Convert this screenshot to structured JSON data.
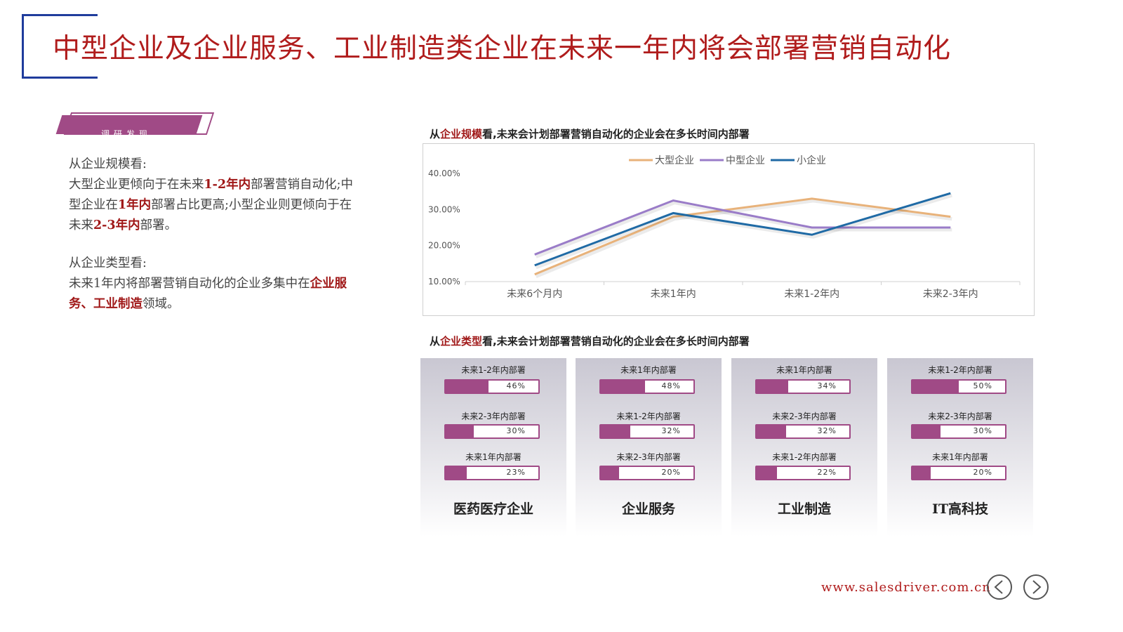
{
  "title": "中型企业及企业服务、工业制造类企业在未来一年内将会部署营销自动化",
  "tag_label": "调研发现",
  "findings": {
    "p1_head": "从企业规模看:",
    "p1_parts": [
      "大型企业更倾向于在未来",
      "1-2年内",
      "部署营销自动化;中型企业在",
      "1年内",
      "部署占比更高;小型企业则更倾向于在未来",
      "2-3年内",
      "部署。"
    ],
    "p2_head": "从企业类型看:",
    "p2_parts": [
      "未来1年内将部署营销自动化的企业多集中在",
      "企业服务",
      "、",
      "工业制造",
      "领域。"
    ]
  },
  "section1": {
    "prefix": "从",
    "highlight": "企业规模",
    "suffix": "看,未来会计划部署营销自动化的企业会在多长时间内部署"
  },
  "section2": {
    "prefix": "从",
    "highlight": "企业类型",
    "suffix": "看,未来会计划部署营销自动化的企业会在多长时间内部署"
  },
  "chart_data": {
    "type": "line",
    "categories": [
      "未来6个月内",
      "未来1年内",
      "未来1-2年内",
      "未来2-3年内"
    ],
    "series": [
      {
        "name": "大型企业",
        "color": "#e8b27a",
        "values": [
          12,
          28,
          33,
          28
        ]
      },
      {
        "name": "中型企业",
        "color": "#9a7cc8",
        "values": [
          17.5,
          32.5,
          25,
          25
        ]
      },
      {
        "name": "小企业",
        "color": "#1f6aa5",
        "values": [
          14.5,
          29,
          23,
          34.5
        ]
      }
    ],
    "yticks": [
      "10.00%",
      "20.00%",
      "30.00%",
      "40.00%"
    ],
    "ylim": [
      10,
      40
    ],
    "legend": "top",
    "grid": false
  },
  "cards": [
    {
      "name": "医药医疗企业",
      "bars": [
        {
          "label": "未来1-2年内部署",
          "value": "46%",
          "pct": 46
        },
        {
          "label": "未来2-3年内部署",
          "value": "30%",
          "pct": 30
        },
        {
          "label": "未来1年内部署",
          "value": "23%",
          "pct": 23
        }
      ]
    },
    {
      "name": "企业服务",
      "bars": [
        {
          "label": "未来1年内部署",
          "value": "48%",
          "pct": 48
        },
        {
          "label": "未来1-2年内部署",
          "value": "32%",
          "pct": 32
        },
        {
          "label": "未来2-3年内部署",
          "value": "20%",
          "pct": 20
        }
      ]
    },
    {
      "name": "工业制造",
      "bars": [
        {
          "label": "未来1年内部署",
          "value": "34%",
          "pct": 34
        },
        {
          "label": "未来2-3年内部署",
          "value": "32%",
          "pct": 32
        },
        {
          "label": "未来1-2年内部署",
          "value": "22%",
          "pct": 22
        }
      ]
    },
    {
      "name": "IT高科技",
      "bars": [
        {
          "label": "未来1-2年内部署",
          "value": "50%",
          "pct": 50
        },
        {
          "label": "未来2-3年内部署",
          "value": "30%",
          "pct": 30
        },
        {
          "label": "未来1年内部署",
          "value": "20%",
          "pct": 20
        }
      ]
    }
  ],
  "footer": {
    "site": "www.salesdriver.com.cn"
  },
  "icons": {
    "prev": "chevron-left-icon",
    "next": "chevron-right-icon"
  },
  "colors": {
    "accent_red": "#b01c1c",
    "brand_purple": "#a04a86",
    "bracket_blue": "#1f3c9c"
  }
}
